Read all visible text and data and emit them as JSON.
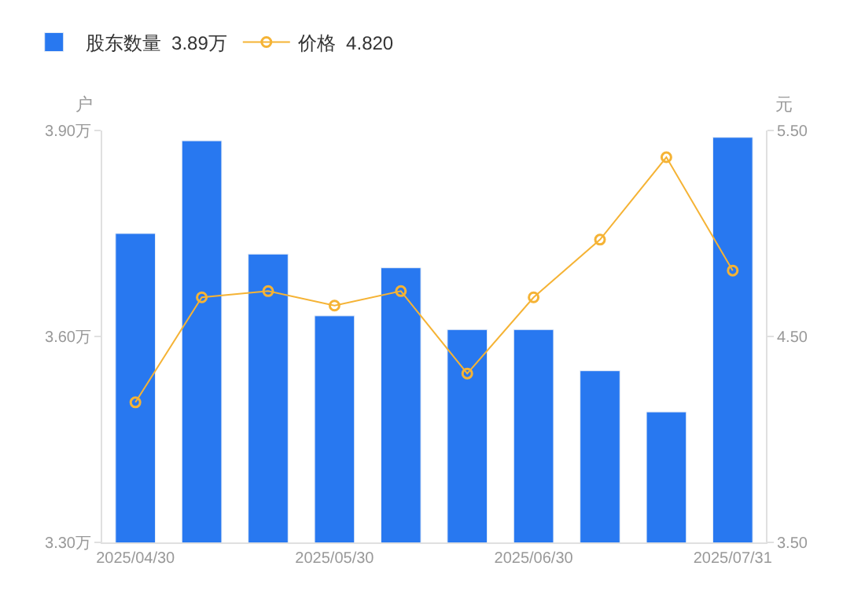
{
  "chart_data": {
    "type": "bar",
    "categories": [
      "2025/04/30",
      null,
      null,
      "2025/05/30",
      null,
      null,
      "2025/06/30",
      null,
      null,
      "2025/07/31"
    ],
    "ylabel": "户",
    "y2label": "元",
    "series": [
      {
        "name": "股东数量  3.89万",
        "color": "#2878f0",
        "values": [
          3.75,
          3.885,
          3.72,
          3.63,
          3.7,
          3.61,
          3.61,
          3.55,
          3.49,
          3.89
        ]
      },
      {
        "name": "价格  4.820",
        "type": "line",
        "axis": "y2",
        "color": "#f5b335",
        "marker": "circle",
        "values": [
          4.18,
          4.69,
          4.72,
          4.65,
          4.72,
          4.32,
          4.69,
          4.97,
          5.37,
          4.82
        ]
      }
    ],
    "ylim": [
      3.3,
      3.9
    ],
    "yticks": [
      {
        "value": 3.3,
        "label": "3.30万"
      },
      {
        "value": 3.6,
        "label": "3.60万"
      },
      {
        "value": 3.9,
        "label": "3.90万"
      }
    ],
    "y2lim": [
      3.5,
      5.5
    ],
    "y2ticks": [
      {
        "value": 3.5,
        "label": "3.50"
      },
      {
        "value": 4.5,
        "label": "4.50"
      },
      {
        "value": 5.5,
        "label": "5.50"
      }
    ],
    "legend": "top left"
  }
}
